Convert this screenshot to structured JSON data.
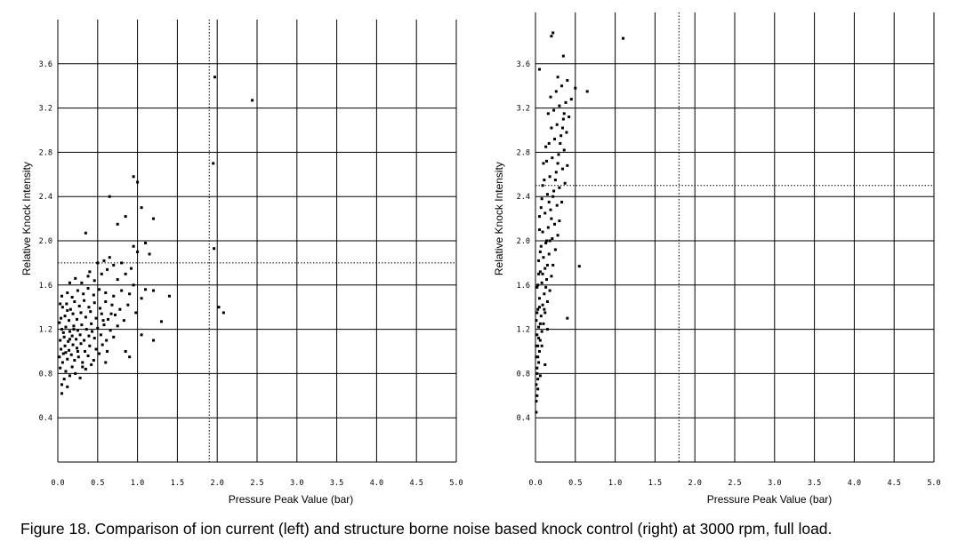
{
  "caption": "Figure 18.  Comparison of ion current (left) and structure borne noise based knock control (right) at 3000 rpm, full load.",
  "colors": {
    "ink": "#000000",
    "background": "#ffffff"
  },
  "chart_data": [
    {
      "type": "scatter",
      "name": "ion current (left)",
      "title": "",
      "xlabel": "Pressure Peak Value (bar)",
      "ylabel": "Relative Knock Intensity",
      "xlim": [
        0.0,
        5.0
      ],
      "ylim": [
        0.0,
        4.0
      ],
      "xticks": [
        "0.0",
        "0.5",
        "1.0",
        "1.5",
        "2.0",
        "2.5",
        "3.0",
        "3.5",
        "4.0",
        "4.5",
        "5.0"
      ],
      "yticks": [
        "0.4",
        "0.8",
        "1.2",
        "1.6",
        "2.0",
        "2.4",
        "2.8",
        "3.2",
        "3.6"
      ],
      "ytick_values": [
        0.4,
        0.8,
        1.2,
        1.6,
        2.0,
        2.4,
        2.8,
        3.2,
        3.6
      ],
      "grid": true,
      "threshold_vline_x": 1.9,
      "threshold_hline_y": 1.8,
      "points": [
        [
          0.05,
          0.62
        ],
        [
          0.05,
          0.7
        ],
        [
          0.08,
          0.75
        ],
        [
          0.12,
          0.68
        ],
        [
          0.15,
          0.78
        ],
        [
          0.1,
          0.82
        ],
        [
          0.03,
          0.85
        ],
        [
          0.06,
          0.9
        ],
        [
          0.18,
          0.86
        ],
        [
          0.22,
          0.8
        ],
        [
          0.28,
          0.76
        ],
        [
          0.35,
          0.84
        ],
        [
          0.02,
          0.95
        ],
        [
          0.07,
          0.98
        ],
        [
          0.12,
          0.93
        ],
        [
          0.17,
          0.97
        ],
        [
          0.21,
          0.92
        ],
        [
          0.26,
          0.95
        ],
        [
          0.31,
          0.9
        ],
        [
          0.38,
          0.96
        ],
        [
          0.45,
          0.92
        ],
        [
          0.52,
          0.98
        ],
        [
          0.04,
          1.02
        ],
        [
          0.09,
          1.05
        ],
        [
          0.14,
          1.01
        ],
        [
          0.19,
          1.06
        ],
        [
          0.24,
          1.03
        ],
        [
          0.29,
          1.07
        ],
        [
          0.34,
          1.0
        ],
        [
          0.4,
          1.05
        ],
        [
          0.48,
          1.02
        ],
        [
          0.56,
          1.06
        ],
        [
          0.62,
          1.0
        ],
        [
          0.03,
          1.1
        ],
        [
          0.08,
          1.13
        ],
        [
          0.13,
          1.09
        ],
        [
          0.18,
          1.14
        ],
        [
          0.23,
          1.11
        ],
        [
          0.28,
          1.15
        ],
        [
          0.33,
          1.1
        ],
        [
          0.39,
          1.14
        ],
        [
          0.46,
          1.12
        ],
        [
          0.54,
          1.15
        ],
        [
          0.61,
          1.1
        ],
        [
          0.7,
          1.13
        ],
        [
          0.05,
          1.2
        ],
        [
          0.1,
          1.22
        ],
        [
          0.15,
          1.18
        ],
        [
          0.2,
          1.23
        ],
        [
          0.25,
          1.19
        ],
        [
          0.3,
          1.24
        ],
        [
          0.36,
          1.2
        ],
        [
          0.42,
          1.25
        ],
        [
          0.5,
          1.21
        ],
        [
          0.58,
          1.24
        ],
        [
          0.66,
          1.19
        ],
        [
          0.75,
          1.23
        ],
        [
          0.04,
          1.3
        ],
        [
          0.09,
          1.32
        ],
        [
          0.14,
          1.28
        ],
        [
          0.19,
          1.34
        ],
        [
          0.24,
          1.29
        ],
        [
          0.29,
          1.35
        ],
        [
          0.35,
          1.31
        ],
        [
          0.41,
          1.36
        ],
        [
          0.48,
          1.3
        ],
        [
          0.55,
          1.34
        ],
        [
          0.63,
          1.29
        ],
        [
          0.72,
          1.33
        ],
        [
          0.06,
          1.4
        ],
        [
          0.11,
          1.43
        ],
        [
          0.16,
          1.38
        ],
        [
          0.21,
          1.45
        ],
        [
          0.27,
          1.41
        ],
        [
          0.33,
          1.46
        ],
        [
          0.39,
          1.4
        ],
        [
          0.46,
          1.44
        ],
        [
          0.53,
          1.39
        ],
        [
          0.6,
          1.45
        ],
        [
          0.68,
          1.42
        ],
        [
          0.78,
          1.38
        ],
        [
          0.05,
          1.5
        ],
        [
          0.12,
          1.53
        ],
        [
          0.18,
          1.49
        ],
        [
          0.25,
          1.55
        ],
        [
          0.32,
          1.52
        ],
        [
          0.38,
          1.57
        ],
        [
          0.45,
          1.51
        ],
        [
          0.52,
          1.56
        ],
        [
          0.6,
          1.53
        ],
        [
          0.7,
          1.5
        ],
        [
          0.8,
          1.55
        ],
        [
          0.9,
          1.52
        ],
        [
          0.95,
          1.6
        ],
        [
          1.05,
          1.48
        ],
        [
          1.1,
          1.56
        ],
        [
          1.2,
          1.55
        ],
        [
          1.4,
          1.5
        ],
        [
          1.3,
          1.27
        ],
        [
          1.2,
          1.1
        ],
        [
          1.05,
          1.15
        ],
        [
          0.9,
          0.95
        ],
        [
          0.85,
          1.0
        ],
        [
          0.15,
          1.62
        ],
        [
          0.22,
          1.66
        ],
        [
          0.3,
          1.62
        ],
        [
          0.38,
          1.68
        ],
        [
          0.46,
          1.64
        ],
        [
          0.55,
          1.7
        ],
        [
          0.62,
          1.74
        ],
        [
          0.7,
          1.78
        ],
        [
          0.4,
          1.72
        ],
        [
          0.5,
          1.8
        ],
        [
          0.58,
          1.82
        ],
        [
          0.65,
          1.85
        ],
        [
          0.75,
          1.65
        ],
        [
          0.85,
          1.7
        ],
        [
          0.92,
          1.75
        ],
        [
          1.0,
          1.9
        ],
        [
          0.95,
          1.95
        ],
        [
          1.1,
          1.98
        ],
        [
          0.8,
          1.8
        ],
        [
          0.35,
          2.07
        ],
        [
          0.75,
          2.15
        ],
        [
          0.85,
          2.22
        ],
        [
          0.95,
          2.58
        ],
        [
          1.0,
          2.53
        ],
        [
          0.65,
          2.4
        ],
        [
          1.05,
          2.3
        ],
        [
          1.2,
          2.2
        ],
        [
          1.15,
          1.88
        ],
        [
          1.97,
          3.48
        ],
        [
          2.44,
          3.27
        ],
        [
          1.95,
          2.7
        ],
        [
          1.96,
          1.93
        ],
        [
          2.02,
          1.4
        ],
        [
          2.08,
          1.35
        ],
        [
          0.25,
          1.0
        ],
        [
          0.31,
          0.86
        ],
        [
          0.42,
          0.88
        ],
        [
          0.6,
          0.9
        ],
        [
          0.2,
          1.2
        ],
        [
          0.15,
          1.11
        ],
        [
          0.1,
          0.99
        ],
        [
          0.07,
          1.17
        ],
        [
          0.02,
          1.26
        ],
        [
          0.03,
          1.43
        ],
        [
          0.12,
          1.37
        ],
        [
          0.43,
          1.18
        ],
        [
          0.57,
          1.28
        ],
        [
          0.67,
          1.34
        ],
        [
          0.83,
          1.28
        ],
        [
          0.88,
          1.42
        ],
        [
          0.98,
          1.35
        ]
      ]
    },
    {
      "type": "scatter",
      "name": "structure borne noise (right)",
      "title": "",
      "xlabel": "Pressure Peak Value (bar)",
      "ylabel": "Relative Knock Intensity",
      "xlim": [
        0.0,
        5.0
      ],
      "ylim": [
        0.0,
        4.0
      ],
      "xticks": [
        "0.0",
        "0.5",
        "1.0",
        "1.5",
        "2.0",
        "2.5",
        "3.0",
        "3.5",
        "4.0",
        "4.5",
        "5.0"
      ],
      "yticks": [
        "0.4",
        "0.8",
        "1.2",
        "1.6",
        "2.0",
        "2.4",
        "2.8",
        "3.2",
        "3.6"
      ],
      "ytick_values": [
        0.4,
        0.8,
        1.2,
        1.6,
        2.0,
        2.4,
        2.8,
        3.2,
        3.6
      ],
      "grid": true,
      "threshold_vline_x": 1.8,
      "threshold_hline_y": 2.5,
      "points": [
        [
          0.01,
          0.45
        ],
        [
          0.01,
          0.55
        ],
        [
          0.02,
          0.6
        ],
        [
          0.01,
          0.7
        ],
        [
          0.03,
          0.75
        ],
        [
          0.02,
          0.85
        ],
        [
          0.04,
          0.9
        ],
        [
          0.01,
          0.95
        ],
        [
          0.05,
          1.0
        ],
        [
          0.03,
          1.05
        ],
        [
          0.06,
          1.1
        ],
        [
          0.02,
          1.15
        ],
        [
          0.08,
          1.18
        ],
        [
          0.04,
          1.22
        ],
        [
          0.1,
          1.25
        ],
        [
          0.01,
          1.28
        ],
        [
          0.07,
          1.32
        ],
        [
          0.12,
          1.35
        ],
        [
          0.03,
          1.38
        ],
        [
          0.09,
          1.42
        ],
        [
          0.15,
          1.45
        ],
        [
          0.05,
          1.48
        ],
        [
          0.11,
          1.52
        ],
        [
          0.18,
          1.55
        ],
        [
          0.02,
          1.58
        ],
        [
          0.08,
          1.62
        ],
        [
          0.14,
          1.65
        ],
        [
          0.2,
          1.68
        ],
        [
          0.06,
          1.72
        ],
        [
          0.12,
          1.75
        ],
        [
          0.22,
          1.78
        ],
        [
          0.04,
          1.82
        ],
        [
          0.1,
          1.85
        ],
        [
          0.17,
          1.88
        ],
        [
          0.25,
          1.92
        ],
        [
          0.07,
          1.95
        ],
        [
          0.13,
          1.98
        ],
        [
          0.21,
          2.02
        ],
        [
          0.28,
          2.05
        ],
        [
          0.09,
          2.08
        ],
        [
          0.16,
          2.12
        ],
        [
          0.24,
          2.15
        ],
        [
          0.3,
          2.18
        ],
        [
          0.05,
          2.22
        ],
        [
          0.12,
          2.25
        ],
        [
          0.19,
          2.28
        ],
        [
          0.27,
          2.32
        ],
        [
          0.33,
          2.35
        ],
        [
          0.08,
          2.38
        ],
        [
          0.15,
          2.42
        ],
        [
          0.23,
          2.45
        ],
        [
          0.3,
          2.48
        ],
        [
          0.37,
          2.52
        ],
        [
          0.11,
          2.55
        ],
        [
          0.18,
          2.58
        ],
        [
          0.26,
          2.62
        ],
        [
          0.34,
          2.65
        ],
        [
          0.4,
          2.68
        ],
        [
          0.14,
          2.72
        ],
        [
          0.21,
          2.75
        ],
        [
          0.29,
          2.78
        ],
        [
          0.36,
          2.82
        ],
        [
          0.17,
          2.88
        ],
        [
          0.24,
          2.92
        ],
        [
          0.32,
          2.95
        ],
        [
          0.39,
          2.98
        ],
        [
          0.2,
          3.02
        ],
        [
          0.27,
          3.05
        ],
        [
          0.35,
          3.1
        ],
        [
          0.42,
          3.12
        ],
        [
          0.23,
          3.18
        ],
        [
          0.3,
          3.22
        ],
        [
          0.38,
          3.25
        ],
        [
          0.45,
          3.28
        ],
        [
          0.26,
          3.35
        ],
        [
          0.33,
          3.4
        ],
        [
          0.4,
          3.45
        ],
        [
          0.05,
          3.55
        ],
        [
          0.2,
          3.85
        ],
        [
          0.22,
          3.88
        ],
        [
          0.35,
          3.67
        ],
        [
          0.5,
          3.38
        ],
        [
          0.65,
          3.35
        ],
        [
          1.1,
          3.83
        ],
        [
          0.55,
          1.77
        ],
        [
          0.4,
          1.3
        ],
        [
          0.12,
          0.88
        ],
        [
          0.02,
          0.8
        ],
        [
          0.03,
          0.66
        ],
        [
          0.06,
          0.78
        ],
        [
          0.04,
          1.12
        ],
        [
          0.05,
          1.4
        ],
        [
          0.03,
          1.6
        ],
        [
          0.06,
          1.9
        ],
        [
          0.05,
          2.1
        ],
        [
          0.07,
          2.3
        ],
        [
          0.09,
          2.5
        ],
        [
          0.1,
          2.7
        ],
        [
          0.13,
          2.85
        ],
        [
          0.16,
          3.15
        ],
        [
          0.19,
          3.3
        ],
        [
          0.28,
          3.48
        ],
        [
          0.04,
          1.7
        ],
        [
          0.02,
          1.35
        ],
        [
          0.06,
          1.25
        ],
        [
          0.11,
          1.38
        ],
        [
          0.13,
          1.58
        ],
        [
          0.15,
          1.78
        ],
        [
          0.18,
          2.0
        ],
        [
          0.2,
          2.2
        ],
        [
          0.22,
          2.4
        ],
        [
          0.25,
          2.55
        ],
        [
          0.28,
          2.7
        ],
        [
          0.31,
          2.88
        ],
        [
          0.34,
          3.02
        ],
        [
          0.36,
          3.15
        ],
        [
          0.01,
          1.05
        ],
        [
          0.03,
          0.95
        ],
        [
          0.08,
          1.05
        ],
        [
          0.15,
          1.2
        ],
        [
          0.09,
          1.7
        ],
        [
          0.14,
          2.0
        ],
        [
          0.17,
          2.35
        ]
      ]
    }
  ]
}
